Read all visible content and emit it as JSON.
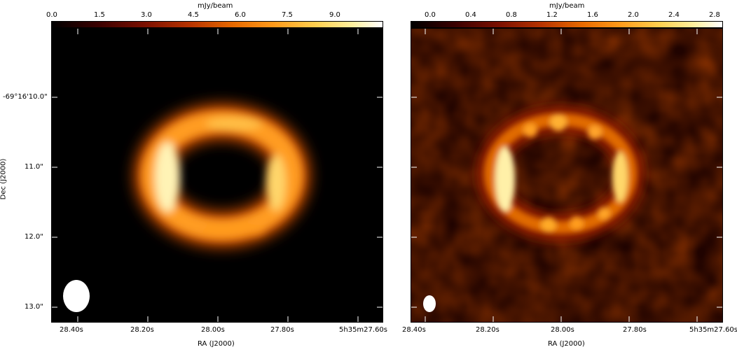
{
  "colors": {
    "colormap": [
      "#000000",
      "#3a0000",
      "#7a0f00",
      "#b83400",
      "#e86a00",
      "#ff9a1a",
      "#ffd050",
      "#fff1a0",
      "#ffffff"
    ],
    "background": "#ffffff"
  },
  "left_panel": {
    "colorbar_label": "mJy/beam",
    "colorbar_ticks": [
      "0.0",
      "1.5",
      "3.0",
      "4.5",
      "6.0",
      "7.5",
      "9.0"
    ],
    "colorbar_range": [
      0.0,
      10.3
    ],
    "y_axis_title": "Dec (J2000)",
    "y_ticks": [
      "-69°16'10.0\"",
      "11.0\"",
      "12.0\"",
      "13.0\""
    ],
    "x_ticks": [
      "28.40s",
      "28.20s",
      "28.00s",
      "27.80s",
      "5h35m27.60s"
    ],
    "x_axis_title": "RA (J2000)"
  },
  "right_panel": {
    "colorbar_label": "mJy/beam",
    "colorbar_ticks": [
      "0.0",
      "0.4",
      "0.8",
      "1.2",
      "1.6",
      "2.0",
      "2.4",
      "2.8"
    ],
    "colorbar_range": [
      -0.1,
      2.95
    ],
    "x_ticks": [
      "28.40s",
      "28.20s",
      "28.00s",
      "27.80s",
      "5h35m27.60s"
    ],
    "x_axis_title": "RA (J2000)"
  }
}
